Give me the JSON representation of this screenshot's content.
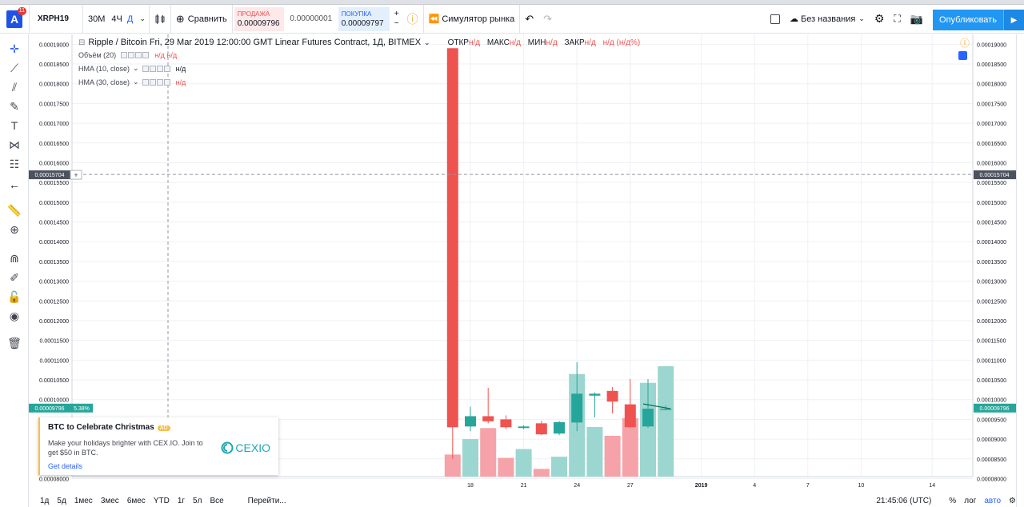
{
  "topbar": {
    "logo_letter": "A",
    "notif_count": "11",
    "symbol": "XRPH19",
    "interval_30m": "30М",
    "interval_4h": "4Ч",
    "interval_d": "Д",
    "compare_label": "Сравнить",
    "sell_label": "ПРОДАЖА",
    "sell_price": "0.00009796",
    "spread": "0.00000001",
    "buy_label": "ПОКУПКА",
    "buy_price": "0.00009797",
    "simulator_label": "Симулятор рынка",
    "layout_name": "Без названия",
    "publish_label": "Опубликовать"
  },
  "legend": {
    "title": "Ripple / Bitcoin Fri, 29 Mar 2019 12:00:00 GMT Linear Futures Contract, 1Д, BITMEX",
    "ohlc": [
      {
        "k": "ОТКР",
        "v": "н/д"
      },
      {
        "k": "МАКС",
        "v": "н/д"
      },
      {
        "k": "МИН",
        "v": "н/д"
      },
      {
        "k": "ЗАКР",
        "v": "н/д"
      },
      {
        "k": "",
        "v": "н/д (н/д%)"
      }
    ],
    "indicators": [
      {
        "name": "Объём (20)",
        "value": "н/д  н/д"
      },
      {
        "name": "HMA (10, close)",
        "value": "н/д"
      },
      {
        "name": "HMA (30, close)",
        "value": "н/д"
      }
    ]
  },
  "ad": {
    "title": "BTC to Celebrate Christmas",
    "badge": "AD",
    "text": "Make your holidays brighter with CEX.IO. Join to get $50 in BTC.",
    "link": "Get details",
    "brand": "CEXIO"
  },
  "bottombar": {
    "ranges": [
      "1д",
      "5д",
      "1мес",
      "3мес",
      "6мес",
      "YTD",
      "1г",
      "5л",
      "Все"
    ],
    "goto": "Перейти...",
    "time": "21:45:06 (UTC)",
    "percent": "%",
    "log": "лог",
    "auto": "авто"
  },
  "chart_data": {
    "type": "candlestick",
    "ylim": [
      8.05e-05,
      0.0001925
    ],
    "y_ticks": [
      "0.00019000",
      "0.00018500",
      "0.00018000",
      "0.00017500",
      "0.00017000",
      "0.00016500",
      "0.00016000",
      "0.00015500",
      "0.00015000",
      "0.00014500",
      "0.00014000",
      "0.00013500",
      "0.00013000",
      "0.00012500",
      "0.00012000",
      "0.00011500",
      "0.00011000",
      "0.00010500",
      "0.00010000",
      "0.00009500",
      "0.00009000",
      "0.00008500",
      "0.00008000"
    ],
    "x_ticks": [
      {
        "label": "18",
        "day": 18
      },
      {
        "label": "21",
        "day": 21
      },
      {
        "label": "24",
        "day": 24
      },
      {
        "label": "27",
        "day": 27
      },
      {
        "label": "2019",
        "day": 31
      },
      {
        "label": "4",
        "day": 34
      },
      {
        "label": "7",
        "day": 37
      },
      {
        "label": "10",
        "day": 40
      },
      {
        "label": "14",
        "day": 44
      }
    ],
    "candles": [
      {
        "day": 17,
        "open": 0.000189,
        "high": 0.000189,
        "low": 8.5e-05,
        "close": 9.3e-05,
        "vol": 0.2
      },
      {
        "day": 18,
        "open": 9.32e-05,
        "high": 9.82e-05,
        "low": 9.2e-05,
        "close": 9.58e-05,
        "vol": 0.34
      },
      {
        "day": 19,
        "open": 9.58e-05,
        "high": 0.000103,
        "low": 9.4e-05,
        "close": 9.45e-05,
        "vol": 0.44
      },
      {
        "day": 20,
        "open": 9.5e-05,
        "high": 9.6e-05,
        "low": 9.25e-05,
        "close": 9.3e-05,
        "vol": 0.17
      },
      {
        "day": 21,
        "open": 9.28e-05,
        "high": 9.35e-05,
        "low": 9.25e-05,
        "close": 9.32e-05,
        "vol": 0.25
      },
      {
        "day": 22,
        "open": 9.4e-05,
        "high": 9.46e-05,
        "low": 9.1e-05,
        "close": 9.12e-05,
        "vol": 0.07
      },
      {
        "day": 23,
        "open": 9.14e-05,
        "high": 9.46e-05,
        "low": 9.1e-05,
        "close": 9.43e-05,
        "vol": 0.18
      },
      {
        "day": 24,
        "open": 9.42e-05,
        "high": 0.0001095,
        "low": 9.2e-05,
        "close": 0.0001015,
        "vol": 0.93
      },
      {
        "day": 25,
        "open": 0.000101,
        "high": 0.0001018,
        "low": 9.55e-05,
        "close": 0.0001015,
        "vol": 0.45
      },
      {
        "day": 26,
        "open": 0.0001022,
        "high": 0.0001032,
        "low": 9.65e-05,
        "close": 9.95e-05,
        "vol": 0.37
      },
      {
        "day": 27,
        "open": 9.88e-05,
        "high": 0.0001052,
        "low": 9.28e-05,
        "close": 9.3e-05,
        "vol": 0.53
      },
      {
        "day": 28,
        "open": 9.32e-05,
        "high": 0.0001052,
        "low": 9.28e-05,
        "close": 9.77e-05,
        "vol": 0.85
      },
      {
        "day": 29,
        "open": 9.75e-05,
        "high": 9.85e-05,
        "low": 9.73e-05,
        "close": 9.77e-05,
        "vol": 1.0
      }
    ],
    "hma_segment": {
      "from_day": 28,
      "to_day": 29,
      "from": 9.89e-05,
      "to": 9.77e-05
    },
    "crosshair_price": "0.00015704",
    "last_price": "0.00009796",
    "last_change": "5.38%",
    "colors": {
      "up": "#26a69a",
      "down": "#ef5350",
      "vol_up": "#9cd6d0",
      "vol_down": "#f5a3a8",
      "grid": "#eef0f4",
      "hma": "#0b6b4f"
    }
  }
}
